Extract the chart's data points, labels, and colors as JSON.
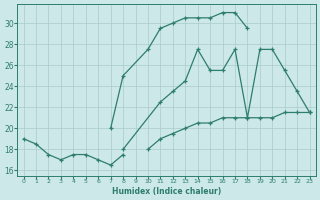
{
  "xlabel": "Humidex (Indice chaleur)",
  "background_color": "#cce8e8",
  "grid_color": "#aacccc",
  "line_color": "#2e7d6e",
  "xlim": [
    -0.5,
    23.5
  ],
  "ylim": [
    15.5,
    31.8
  ],
  "xticks": [
    0,
    1,
    2,
    3,
    4,
    5,
    6,
    7,
    8,
    9,
    10,
    11,
    12,
    13,
    14,
    15,
    16,
    17,
    18,
    19,
    20,
    21,
    22,
    23
  ],
  "yticks": [
    16,
    18,
    20,
    22,
    24,
    26,
    28,
    30
  ],
  "line1_x": [
    0,
    1,
    2,
    3,
    4,
    5,
    6,
    7,
    8
  ],
  "line1_y": [
    19.0,
    18.5,
    17.5,
    17.0,
    17.5,
    17.5,
    17.0,
    16.5,
    17.5
  ],
  "line2_x": [
    7,
    8,
    10,
    11,
    12,
    13,
    14,
    15,
    16,
    17,
    18
  ],
  "line2_y": [
    20.0,
    25.0,
    27.5,
    29.5,
    30.0,
    30.5,
    30.5,
    30.5,
    31.0,
    31.0,
    29.5
  ],
  "line3_x": [
    8,
    11,
    12,
    13,
    14,
    15,
    16,
    17,
    18,
    19,
    20,
    21,
    22,
    23
  ],
  "line3_y": [
    18.0,
    22.5,
    23.5,
    24.5,
    27.5,
    25.5,
    25.5,
    27.5,
    21.0,
    27.5,
    27.5,
    25.5,
    23.5,
    21.5
  ],
  "line4_x": [
    10,
    11,
    12,
    13,
    14,
    15,
    16,
    17,
    18,
    19,
    20,
    21,
    22,
    23
  ],
  "line4_y": [
    18.0,
    19.0,
    19.5,
    20.0,
    20.5,
    20.5,
    21.0,
    21.0,
    21.0,
    21.0,
    21.0,
    21.5,
    21.5,
    21.5
  ]
}
